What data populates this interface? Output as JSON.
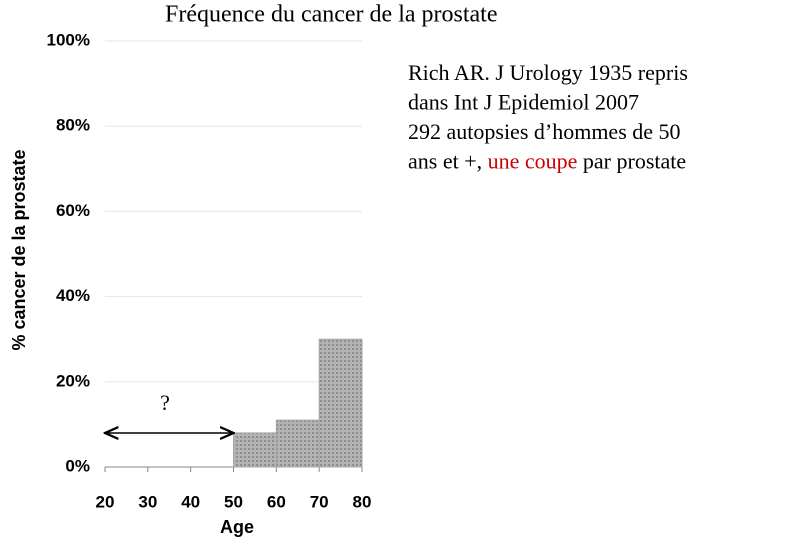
{
  "chart_data": {
    "type": "histogram",
    "title": "Fréquence du cancer de la prostate",
    "ylabel": "% cancer de la prostate",
    "xlabel": "Age",
    "bins": [
      50,
      60,
      70,
      80
    ],
    "values": [
      8,
      11,
      30
    ],
    "color": "#a6a6a6",
    "xlim": [
      20,
      80
    ],
    "xticks": [
      20,
      30,
      40,
      50,
      60,
      70,
      80
    ],
    "ylim": [
      0,
      100
    ],
    "yticks": [
      {
        "value": 0,
        "label": "0%"
      },
      {
        "value": 20,
        "label": "20%"
      },
      {
        "value": 40,
        "label": "40%"
      },
      {
        "value": 60,
        "label": "60%"
      },
      {
        "value": 80,
        "label": "80%"
      },
      {
        "value": 100,
        "label": "100%"
      }
    ],
    "grid": true,
    "annotation": {
      "text": "?",
      "x": [
        20,
        50
      ]
    },
    "note_lines": [
      "Rich AR.  J Urology 1935 repris",
      "dans Int J Epidemiol 2007",
      "292 autopsies d’hommes de 50"
    ],
    "note_last": [
      "ans et +, ",
      "une coupe",
      " par prostate"
    ],
    "highlight_color": "#cc0000"
  }
}
